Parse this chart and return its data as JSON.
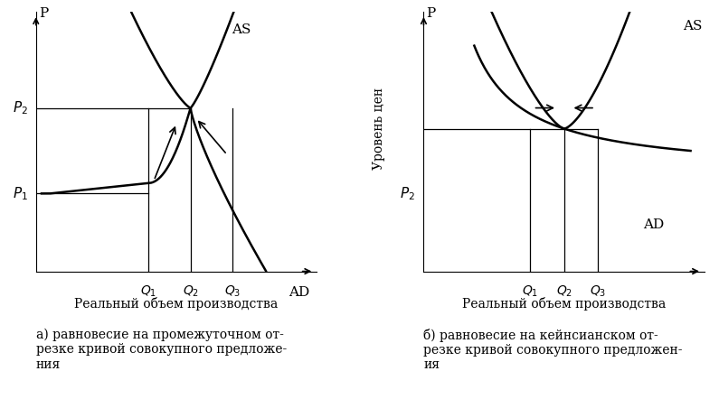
{
  "bg_color": "#ffffff",
  "left_chart": {
    "xlabel": "Реальный объем производства",
    "ylabel": "P",
    "P1": 0.3,
    "P2": 0.63,
    "Q1": 0.4,
    "Q2": 0.55,
    "Q3": 0.7,
    "caption": "а) равновесие на промежуточном от-\nрезке кривой совокупного предложе-\nния"
  },
  "right_chart": {
    "xlabel": "Реальный объем производства",
    "ylabel": "P",
    "ylabel2": "Уровень цен",
    "P2": 0.3,
    "P_eq": 0.55,
    "Q1": 0.38,
    "Q2": 0.5,
    "Q3": 0.62,
    "caption": "б) равновесие на кейнсианском от-\nрезке кривой совокупного предложен-\nия"
  },
  "font_size": 11,
  "caption_font_size": 10
}
